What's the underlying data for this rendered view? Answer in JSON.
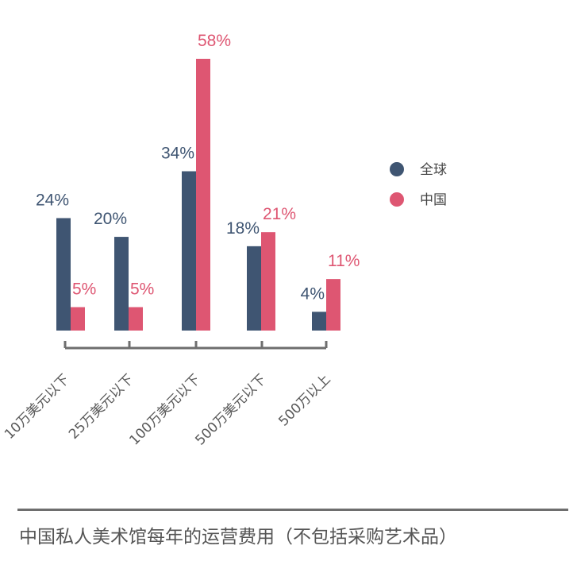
{
  "chart_data": {
    "type": "bar",
    "categories": [
      "10万美元以下",
      "25万美元以下",
      "100万美元以下",
      "500万美元以下",
      "500万以上"
    ],
    "series": [
      {
        "name": "全球",
        "values": [
          24,
          20,
          34,
          18,
          4
        ],
        "labels": [
          "24%",
          "20%",
          "34%",
          "18%",
          "4%"
        ]
      },
      {
        "name": "中国",
        "values": [
          5,
          5,
          58,
          21,
          11
        ],
        "labels": [
          "5%",
          "5%",
          "58%",
          "21%",
          "11%"
        ]
      }
    ],
    "unit": "%",
    "ylim": [
      0,
      58
    ],
    "legend_position": "right",
    "grid": false
  },
  "colors": {
    "global": "#3f5572",
    "china": "#de5672",
    "axis": "#6e6e6e",
    "tick_text": "#5a5a5a",
    "legend_text": "#444444"
  },
  "caption": "中国私人美术馆每年的运营费用（不包括采购艺术品）"
}
